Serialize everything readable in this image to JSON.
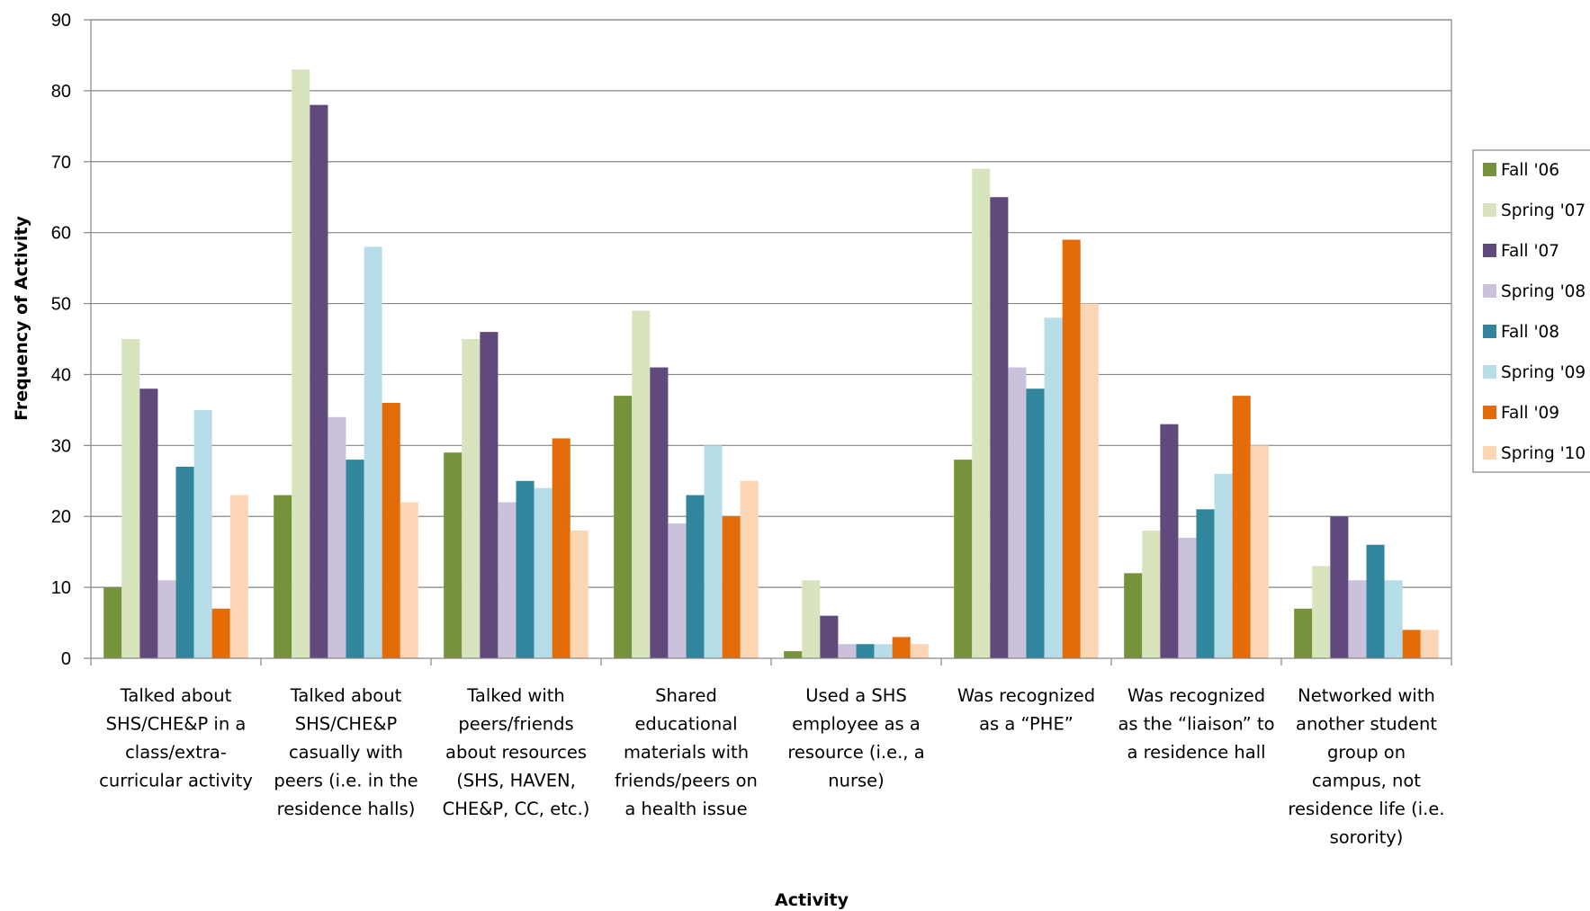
{
  "chart_data": {
    "type": "bar",
    "xlabel": "Activity",
    "ylabel": "Frequency of Activity",
    "ylim": [
      0,
      90
    ],
    "yticks": [
      0,
      10,
      20,
      30,
      40,
      50,
      60,
      70,
      80,
      90
    ],
    "grid": "horizontal",
    "legend_position": "right",
    "categories": [
      [
        "Talked about",
        "SHS/CHE&P in a",
        "class/extra-",
        "curricular activity"
      ],
      [
        "Talked about",
        "SHS/CHE&P",
        "casually with",
        "peers (i.e. in the",
        "residence halls)"
      ],
      [
        "Talked with",
        "peers/friends",
        "about resources",
        "(SHS, HAVEN,",
        "CHE&P, CC, etc.)"
      ],
      [
        "Shared",
        "educational",
        "materials with",
        "friends/peers on",
        "a health issue"
      ],
      [
        "Used a SHS",
        "employee as a",
        "resource (i.e.,  a",
        "nurse)"
      ],
      [
        "Was recognized",
        "as a “PHE”"
      ],
      [
        "Was recognized",
        "as the “liaison” to",
        "a residence hall"
      ],
      [
        "Networked with",
        "another student",
        "group on",
        "campus, not",
        "residence life (i.e.",
        "sorority)"
      ]
    ],
    "series": [
      {
        "name": "Fall '06",
        "color": "#76923c",
        "values": [
          10,
          23,
          29,
          37,
          1,
          28,
          12,
          7
        ]
      },
      {
        "name": "Spring '07",
        "color": "#d7e4bd",
        "values": [
          45,
          83,
          45,
          49,
          11,
          69,
          18,
          13
        ]
      },
      {
        "name": "Fall '07",
        "color": "#604a7b",
        "values": [
          38,
          78,
          46,
          41,
          6,
          65,
          33,
          20
        ]
      },
      {
        "name": "Spring '08",
        "color": "#ccc1da",
        "values": [
          11,
          34,
          22,
          19,
          2,
          41,
          17,
          11
        ]
      },
      {
        "name": "Fall '08",
        "color": "#31859c",
        "values": [
          27,
          28,
          25,
          23,
          2,
          38,
          21,
          16
        ]
      },
      {
        "name": "Spring '09",
        "color": "#b7dee8",
        "values": [
          35,
          58,
          24,
          30,
          2,
          48,
          26,
          11
        ]
      },
      {
        "name": "Fall '09",
        "color": "#e36c09",
        "values": [
          7,
          36,
          31,
          20,
          3,
          59,
          37,
          4
        ]
      },
      {
        "name": "Spring '10",
        "color": "#fcd5b5",
        "values": [
          23,
          22,
          18,
          25,
          2,
          50,
          30,
          4
        ]
      }
    ]
  }
}
